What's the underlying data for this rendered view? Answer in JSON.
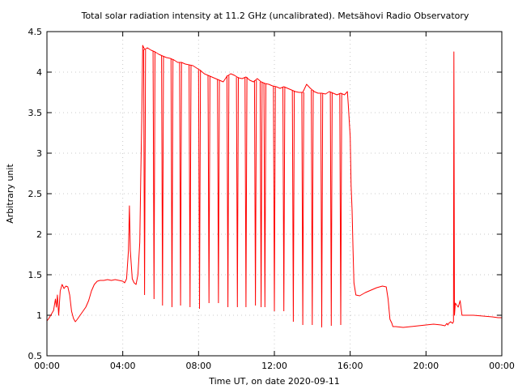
{
  "chart_data": {
    "type": "line",
    "title": "Total solar radiation intensity at 11.2 GHz (uncalibrated). Metsähovi Radio Observatory",
    "xlabel": "Time UT, on date 2020-09-11",
    "ylabel": "Arbitrary unit",
    "xlim": [
      0,
      24
    ],
    "ylim": [
      0.5,
      4.5
    ],
    "grid": true,
    "line_color": "#ff0000",
    "x_ticks": [
      0,
      4,
      8,
      12,
      16,
      20,
      24
    ],
    "x_tick_labels": [
      "00:00",
      "04:00",
      "08:00",
      "12:00",
      "16:00",
      "20:00",
      "00:00"
    ],
    "y_ticks": [
      0.5,
      1,
      1.5,
      2,
      2.5,
      3,
      3.5,
      4,
      4.5
    ],
    "y_tick_labels": [
      "0.5",
      "1",
      "1.5",
      "2",
      "2.5",
      "3",
      "3.5",
      "4",
      "4.5"
    ],
    "series": [
      {
        "points": [
          [
            0.0,
            0.93
          ],
          [
            0.1,
            0.96
          ],
          [
            0.2,
            1.0
          ],
          [
            0.35,
            1.06
          ],
          [
            0.45,
            1.2
          ],
          [
            0.5,
            1.1
          ],
          [
            0.55,
            1.25
          ],
          [
            0.62,
            1.0
          ],
          [
            0.7,
            1.3
          ],
          [
            0.8,
            1.38
          ],
          [
            0.9,
            1.33
          ],
          [
            1.0,
            1.36
          ],
          [
            1.1,
            1.35
          ],
          [
            1.2,
            1.25
          ],
          [
            1.3,
            1.05
          ],
          [
            1.4,
            0.96
          ],
          [
            1.5,
            0.92
          ],
          [
            1.6,
            0.95
          ],
          [
            1.75,
            1.0
          ],
          [
            1.9,
            1.05
          ],
          [
            2.05,
            1.1
          ],
          [
            2.2,
            1.18
          ],
          [
            2.35,
            1.3
          ],
          [
            2.5,
            1.38
          ],
          [
            2.65,
            1.42
          ],
          [
            2.8,
            1.43
          ],
          [
            3.0,
            1.43
          ],
          [
            3.2,
            1.44
          ],
          [
            3.4,
            1.43
          ],
          [
            3.6,
            1.44
          ],
          [
            3.8,
            1.43
          ],
          [
            4.0,
            1.42
          ],
          [
            4.1,
            1.4
          ],
          [
            4.2,
            1.45
          ],
          [
            4.3,
            1.8
          ],
          [
            4.35,
            2.35
          ],
          [
            4.4,
            1.8
          ],
          [
            4.5,
            1.45
          ],
          [
            4.6,
            1.4
          ],
          [
            4.7,
            1.38
          ],
          [
            4.8,
            1.5
          ],
          [
            4.9,
            1.9
          ],
          [
            4.95,
            2.7
          ],
          [
            5.0,
            3.4
          ],
          [
            5.05,
            4.33
          ],
          [
            5.15,
            4.28
          ],
          [
            5.3,
            4.3
          ],
          [
            5.5,
            4.27
          ],
          [
            5.7,
            4.25
          ],
          [
            5.9,
            4.22
          ],
          [
            6.1,
            4.2
          ],
          [
            6.3,
            4.18
          ],
          [
            6.5,
            4.17
          ],
          [
            6.7,
            4.15
          ],
          [
            6.9,
            4.12
          ],
          [
            7.1,
            4.12
          ],
          [
            7.3,
            4.1
          ],
          [
            7.5,
            4.09
          ],
          [
            7.7,
            4.08
          ],
          [
            7.9,
            4.05
          ],
          [
            8.1,
            4.02
          ],
          [
            8.3,
            3.98
          ],
          [
            8.5,
            3.96
          ],
          [
            8.7,
            3.94
          ],
          [
            8.9,
            3.92
          ],
          [
            9.1,
            3.9
          ],
          [
            9.3,
            3.88
          ],
          [
            9.5,
            3.95
          ],
          [
            9.7,
            3.98
          ],
          [
            9.9,
            3.96
          ],
          [
            10.1,
            3.93
          ],
          [
            10.3,
            3.92
          ],
          [
            10.5,
            3.94
          ],
          [
            10.7,
            3.9
          ],
          [
            10.9,
            3.88
          ],
          [
            11.1,
            3.92
          ],
          [
            11.3,
            3.88
          ],
          [
            11.5,
            3.86
          ],
          [
            11.7,
            3.85
          ],
          [
            11.9,
            3.83
          ],
          [
            12.1,
            3.82
          ],
          [
            12.3,
            3.8
          ],
          [
            12.5,
            3.82
          ],
          [
            12.7,
            3.8
          ],
          [
            12.9,
            3.78
          ],
          [
            13.1,
            3.76
          ],
          [
            13.3,
            3.75
          ],
          [
            13.5,
            3.75
          ],
          [
            13.7,
            3.85
          ],
          [
            13.9,
            3.8
          ],
          [
            14.1,
            3.76
          ],
          [
            14.3,
            3.74
          ],
          [
            14.5,
            3.74
          ],
          [
            14.7,
            3.73
          ],
          [
            14.9,
            3.76
          ],
          [
            15.1,
            3.74
          ],
          [
            15.3,
            3.72
          ],
          [
            15.5,
            3.74
          ],
          [
            15.7,
            3.72
          ],
          [
            15.85,
            3.76
          ],
          [
            15.9,
            3.6
          ],
          [
            16.0,
            3.2
          ],
          [
            16.05,
            2.6
          ],
          [
            16.1,
            2.3
          ],
          [
            16.15,
            1.8
          ],
          [
            16.2,
            1.4
          ],
          [
            16.3,
            1.25
          ],
          [
            16.5,
            1.24
          ],
          [
            16.8,
            1.28
          ],
          [
            17.1,
            1.31
          ],
          [
            17.4,
            1.34
          ],
          [
            17.7,
            1.36
          ],
          [
            17.9,
            1.35
          ],
          [
            18.0,
            1.2
          ],
          [
            18.1,
            0.95
          ],
          [
            18.2,
            0.9
          ],
          [
            18.25,
            0.86
          ],
          [
            18.4,
            0.86
          ],
          [
            18.8,
            0.85
          ],
          [
            19.2,
            0.86
          ],
          [
            19.6,
            0.87
          ],
          [
            20.0,
            0.88
          ],
          [
            20.4,
            0.89
          ],
          [
            20.8,
            0.88
          ],
          [
            21.0,
            0.87
          ],
          [
            21.1,
            0.9
          ],
          [
            21.15,
            0.88
          ],
          [
            21.2,
            0.9
          ],
          [
            21.3,
            0.92
          ],
          [
            21.4,
            0.9
          ],
          [
            21.45,
            0.92
          ],
          [
            21.47,
            4.25
          ],
          [
            21.5,
            1.0
          ],
          [
            21.55,
            1.15
          ],
          [
            21.7,
            1.1
          ],
          [
            21.8,
            1.18
          ],
          [
            21.9,
            1.0
          ],
          [
            22.1,
            1.0
          ],
          [
            22.5,
            1.0
          ],
          [
            23.0,
            0.99
          ],
          [
            23.5,
            0.98
          ],
          [
            23.8,
            0.97
          ],
          [
            24.0,
            0.97
          ]
        ],
        "dips": [
          {
            "x": 5.15,
            "y": 1.25
          },
          {
            "x": 5.65,
            "y": 1.2
          },
          {
            "x": 6.1,
            "y": 1.12
          },
          {
            "x": 6.6,
            "y": 1.1
          },
          {
            "x": 7.05,
            "y": 1.12
          },
          {
            "x": 7.55,
            "y": 1.1
          },
          {
            "x": 8.05,
            "y": 1.08
          },
          {
            "x": 8.55,
            "y": 1.15
          },
          {
            "x": 9.05,
            "y": 1.15
          },
          {
            "x": 9.55,
            "y": 1.1
          },
          {
            "x": 10.05,
            "y": 1.1
          },
          {
            "x": 10.5,
            "y": 1.1
          },
          {
            "x": 11.0,
            "y": 1.12
          },
          {
            "x": 11.3,
            "y": 1.1
          },
          {
            "x": 11.5,
            "y": 1.1
          },
          {
            "x": 12.0,
            "y": 1.05
          },
          {
            "x": 12.5,
            "y": 1.05
          },
          {
            "x": 13.0,
            "y": 0.92
          },
          {
            "x": 13.5,
            "y": 0.88
          },
          {
            "x": 14.0,
            "y": 0.88
          },
          {
            "x": 14.5,
            "y": 0.85
          },
          {
            "x": 15.0,
            "y": 0.87
          },
          {
            "x": 15.5,
            "y": 0.88
          }
        ]
      }
    ]
  }
}
